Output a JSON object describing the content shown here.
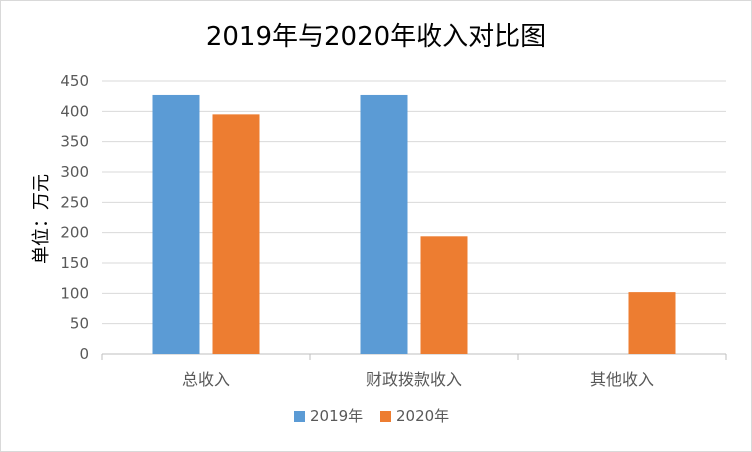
{
  "chart_data": {
    "type": "bar",
    "title": "2019年与2020年收入对比图",
    "xlabel": "",
    "ylabel": "单位：万元",
    "ylim": [
      0,
      450
    ],
    "yticks": [
      0,
      50,
      100,
      150,
      200,
      250,
      300,
      350,
      400,
      450
    ],
    "categories": [
      "总收入",
      "财政拨款收入",
      "其他收入"
    ],
    "series": [
      {
        "name": "2019年",
        "color": "#5b9bd5",
        "values": [
          427,
          427,
          0
        ]
      },
      {
        "name": "2020年",
        "color": "#ed7d31",
        "values": [
          395,
          194,
          102
        ]
      }
    ],
    "grid": true,
    "legend": "bottom"
  }
}
